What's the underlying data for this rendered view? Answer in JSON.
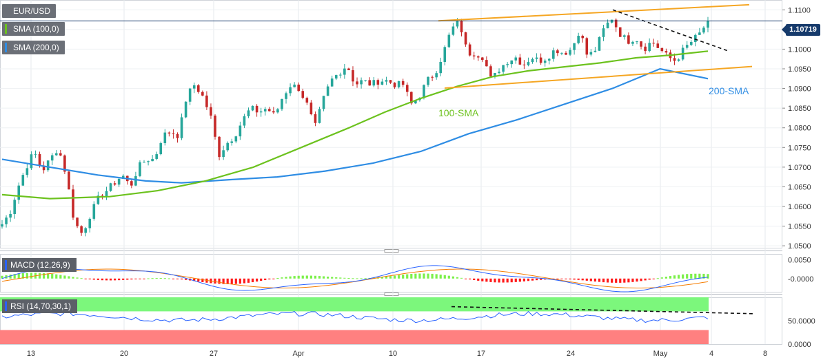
{
  "legend": {
    "symbol": "EUR/USD",
    "sma100_label": "SMA (100,0)",
    "sma200_label": "SMA (200,0)",
    "macd_label": "MACD (12,26,9)",
    "rsi_label": "RSI (14,70,30,1)"
  },
  "current_price_label": "1.10719",
  "annotations": {
    "sma100": "100-SMA",
    "sma200": "200-SMA"
  },
  "colors": {
    "up": "#26a69a",
    "down": "#c62828",
    "sma100": "#6cc21e",
    "sma200": "#2f8de4",
    "trend_orange": "#f5a623",
    "macd_line": "#2962ff",
    "signal_line": "#f57c00",
    "hist_pos": "#7cf04a",
    "hist_neg": "#ff1a1a",
    "rsi_upper": "#7cf77c",
    "rsi_lower": "#ff8080"
  },
  "chart_data": [
    {
      "type": "candlestick",
      "title": "EUR/USD",
      "x_ticks": [
        "13",
        "20",
        "27",
        "Apr",
        "10",
        "17",
        "24",
        "May",
        "4",
        "8"
      ],
      "y_ticks": [
        "1.1100",
        "1.1050",
        "1.1000",
        "1.0950",
        "1.0900",
        "1.0850",
        "1.0800",
        "1.0750",
        "1.0700",
        "1.0650",
        "1.0600",
        "1.0550",
        "1.0500"
      ],
      "ylim": [
        1.0495,
        1.1125
      ],
      "last_close": 1.10719,
      "ohlc_path": [
        1.0555,
        1.0585,
        1.065,
        1.07,
        1.074,
        1.069,
        1.072,
        1.075,
        1.068,
        1.056,
        1.053,
        1.058,
        1.062,
        1.064,
        1.066,
        1.068,
        1.065,
        1.07,
        1.072,
        1.072,
        1.078,
        1.079,
        1.078,
        1.088,
        1.091,
        1.088,
        1.083,
        1.073,
        1.076,
        1.078,
        1.082,
        1.085,
        1.084,
        1.085,
        1.083,
        1.088,
        1.091,
        1.09,
        1.086,
        1.08,
        1.087,
        1.092,
        1.094,
        1.096,
        1.091,
        1.092,
        1.091,
        1.092,
        1.092,
        1.091,
        1.091,
        1.086,
        1.088,
        1.092,
        1.094,
        1.099,
        1.105,
        1.107,
        1.099,
        1.099,
        1.098,
        1.092,
        1.095,
        1.097,
        1.098,
        1.096,
        1.098,
        1.097,
        1.098,
        1.1,
        1.099,
        1.1,
        1.105,
        1.098,
        1.1,
        1.105,
        1.108,
        1.104,
        1.102,
        1.103,
        1.1,
        1.102,
        1.1,
        1.098,
        1.097,
        1.1,
        1.102,
        1.104,
        1.1072
      ],
      "sma100": [
        [
          0,
          1.063
        ],
        [
          8,
          1.062
        ],
        [
          18,
          1.0625
        ],
        [
          26,
          1.064
        ],
        [
          34,
          1.0665
        ],
        [
          42,
          1.07
        ],
        [
          50,
          1.075
        ],
        [
          58,
          1.08
        ],
        [
          64,
          1.084
        ],
        [
          70,
          1.0875
        ],
        [
          76,
          1.0905
        ],
        [
          82,
          1.093
        ],
        [
          88,
          1.0945
        ],
        [
          94,
          1.0955
        ],
        [
          100,
          1.0965
        ],
        [
          106,
          1.0978
        ],
        [
          112,
          1.0985
        ],
        [
          118,
          1.0995
        ]
      ],
      "sma200": [
        [
          0,
          1.072
        ],
        [
          8,
          1.07
        ],
        [
          16,
          1.068
        ],
        [
          24,
          1.0665
        ],
        [
          30,
          1.066
        ],
        [
          38,
          1.0668
        ],
        [
          46,
          1.0675
        ],
        [
          54,
          1.069
        ],
        [
          62,
          1.071
        ],
        [
          70,
          1.074
        ],
        [
          78,
          1.0785
        ],
        [
          86,
          1.082
        ],
        [
          94,
          1.086
        ],
        [
          102,
          1.09
        ],
        [
          110,
          1.095
        ],
        [
          118,
          1.0925
        ]
      ],
      "trendlines": {
        "upper_rising": [
          [
            1.1072
          ],
          [
            1.1113
          ]
        ],
        "lower_rising": [
          [
            1.0901
          ],
          [
            1.0956
          ]
        ],
        "falling_resistance": [
          [
            1.11
          ],
          [
            1.0995
          ]
        ]
      },
      "annotations": [
        "100-SMA",
        "200-SMA"
      ]
    },
    {
      "type": "macd",
      "title": "MACD (12,26,9)",
      "y_ticks": [
        "0.0050",
        "-0.0000"
      ],
      "ylim": [
        -0.0035,
        0.0065
      ]
    },
    {
      "type": "rsi",
      "title": "RSI (14,70,30,1)",
      "y_ticks": [
        "50.0000",
        "0.0000"
      ],
      "ylim": [
        0,
        100
      ]
    }
  ]
}
